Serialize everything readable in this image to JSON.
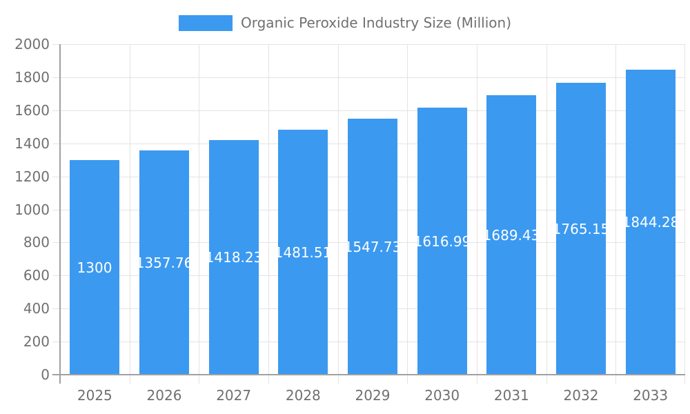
{
  "legend": {
    "label": "Organic Peroxide Industry Size (Million)"
  },
  "chart_data": {
    "type": "bar",
    "title": "Organic Peroxide Industry Size (Million)",
    "categories": [
      "2025",
      "2026",
      "2027",
      "2028",
      "2029",
      "2030",
      "2031",
      "2032",
      "2033"
    ],
    "values": [
      1300,
      1357.76,
      1418.23,
      1481.51,
      1547.73,
      1616.99,
      1689.43,
      1765.15,
      1844.28
    ],
    "value_labels": [
      "1300",
      "1357.76",
      "1418.23",
      "1481.51",
      "1547.73",
      "1616.99",
      "1689.43",
      "1765.15",
      "1844.28"
    ],
    "xlabel": "",
    "ylabel": "",
    "ylim": [
      0,
      2000
    ],
    "yticks": [
      0,
      200,
      400,
      600,
      800,
      1000,
      1200,
      1400,
      1600,
      1800,
      2000
    ],
    "grid": true,
    "legend_position": "top",
    "value_label_position": "inside-center",
    "colors": {
      "bar": "#3B99F0",
      "grid": "#E3E3E3",
      "axis": "#A0A0A0",
      "text": "#707070",
      "value_text": "#FFFFFF",
      "background": "#FFFFFF"
    }
  }
}
